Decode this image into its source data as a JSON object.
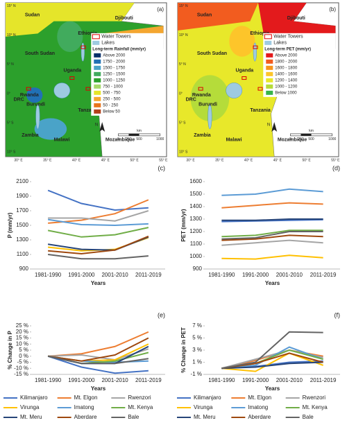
{
  "maps": [
    {
      "panel_label": "(a)",
      "water_towers": "Water Towers",
      "lakes": "Lakes",
      "legend_title": "Long-term Rainfall (mm/yr)",
      "classes": [
        {
          "label": "Above 2000",
          "color": "#08306b"
        },
        {
          "label": "1750 - 2000",
          "color": "#2171b5"
        },
        {
          "label": "1500 - 1750",
          "color": "#4aa3c8"
        },
        {
          "label": "1250 - 1500",
          "color": "#41ab5d"
        },
        {
          "label": "1000 - 1250",
          "color": "#2ca02c"
        },
        {
          "label": "750 - 1000",
          "color": "#a6d96a"
        },
        {
          "label": "500 - 750",
          "color": "#e5e52a"
        },
        {
          "label": "250 - 500",
          "color": "#f4a630"
        },
        {
          "label": "50 - 250",
          "color": "#e8741c"
        },
        {
          "label": "Below 50",
          "color": "#b2401a"
        }
      ],
      "places": [
        "Sudan",
        "Djibouti",
        "Ethiopia",
        "South Sudan",
        "Uganda",
        "Kenya",
        "Rwanda",
        "DRC",
        "Burundi",
        "Tanzania",
        "Zambia",
        "Malawi",
        "Mozambique"
      ],
      "lat_labels": [
        "15° N",
        "10° N",
        "5° N",
        "0°",
        "5° S",
        "10° S"
      ],
      "lon_labels": [
        "30° E",
        "35° E",
        "40° E",
        "45° E",
        "50° E",
        "55° E"
      ],
      "scale_labels": [
        "0",
        "250",
        "500",
        "1000"
      ],
      "scale_unit": "km",
      "north": "N"
    },
    {
      "panel_label": "(b)",
      "water_towers": "Water Towers",
      "lakes": "Lakes",
      "legend_title": "Long-term PET (mm/yr)",
      "classes": [
        {
          "label": "Above 2000",
          "color": "#e31a1c"
        },
        {
          "label": "1800 - 2000",
          "color": "#f25c1f"
        },
        {
          "label": "1600 - 1800",
          "color": "#f7941d"
        },
        {
          "label": "1400 - 1600",
          "color": "#fdc52a"
        },
        {
          "label": "1200 - 1400",
          "color": "#e8e82a"
        },
        {
          "label": "1000 - 1200",
          "color": "#b5dc3a"
        },
        {
          "label": "Below 1000",
          "color": "#38b449"
        }
      ],
      "places": [
        "Sudan",
        "Djibouti",
        "Ethiopia",
        "South Sudan",
        "Uganda",
        "Kenya",
        "Rwanda",
        "DRC",
        "Burundi",
        "Tanzania",
        "Zambia",
        "Malawi",
        "Mozambique"
      ],
      "lat_labels": [
        "15° N",
        "10° N",
        "5° N",
        "0°",
        "5° S",
        "10° S"
      ],
      "lon_labels": [
        "30° E",
        "35° E",
        "40° E",
        "45° E",
        "50° E",
        "55° E"
      ],
      "scale_labels": [
        "0",
        "250",
        "500",
        "1000"
      ],
      "scale_unit": "km",
      "north": "N"
    }
  ],
  "chart_data": [
    {
      "type": "line",
      "panel_label": "(c)",
      "y_label": "P (mm/yr)",
      "x_label": "Years",
      "categories": [
        "1981-1990",
        "1991-2000",
        "2001-2010",
        "2011-2019"
      ],
      "ylim": [
        900,
        2100
      ],
      "yticks": [
        900,
        1100,
        1300,
        1500,
        1700,
        1900,
        2100
      ],
      "legend": false,
      "series": [
        {
          "name": "Kilimanjaro",
          "color": "#4472c4",
          "values": [
            1980,
            1800,
            1710,
            1740
          ]
        },
        {
          "name": "Mt. Elgon",
          "color": "#ed7d31",
          "values": [
            1530,
            1570,
            1660,
            1850
          ]
        },
        {
          "name": "Rwenzori",
          "color": "#a5a5a5",
          "values": [
            1600,
            1600,
            1560,
            1700
          ]
        },
        {
          "name": "Virunga",
          "color": "#ffc000",
          "values": [
            1200,
            1150,
            1170,
            1330
          ]
        },
        {
          "name": "Imatong",
          "color": "#5b9bd5",
          "values": [
            1580,
            1510,
            1500,
            1520
          ]
        },
        {
          "name": "Mt. Kenya",
          "color": "#70ad47",
          "values": [
            1430,
            1340,
            1370,
            1470
          ]
        },
        {
          "name": "Mt. Meru",
          "color": "#264478",
          "values": [
            1240,
            1170,
            1160,
            1340
          ]
        },
        {
          "name": "Aberdare",
          "color": "#9e480e",
          "values": [
            1150,
            1110,
            1160,
            1350
          ]
        },
        {
          "name": "Bale",
          "color": "#636363",
          "values": [
            1100,
            1040,
            1040,
            1080
          ]
        }
      ]
    },
    {
      "type": "line",
      "panel_label": "(d)",
      "y_label": "PET (mm/yr)",
      "x_label": "Years",
      "categories": [
        "1981-1990",
        "1991-2000",
        "2001-2010",
        "2011-2019"
      ],
      "ylim": [
        900,
        1600
      ],
      "yticks": [
        900,
        1000,
        1100,
        1200,
        1300,
        1400,
        1500,
        1600
      ],
      "legend": false,
      "series": [
        {
          "name": "Kilimanjaro",
          "color": "#4472c4",
          "values": [
            1280,
            1285,
            1290,
            1295
          ]
        },
        {
          "name": "Mt. Elgon",
          "color": "#ed7d31",
          "values": [
            1390,
            1410,
            1430,
            1420
          ]
        },
        {
          "name": "Rwenzori",
          "color": "#a5a5a5",
          "values": [
            1090,
            1110,
            1130,
            1110
          ]
        },
        {
          "name": "Virunga",
          "color": "#ffc000",
          "values": [
            985,
            980,
            1010,
            990
          ]
        },
        {
          "name": "Imatong",
          "color": "#5b9bd5",
          "values": [
            1490,
            1500,
            1540,
            1520
          ]
        },
        {
          "name": "Mt. Kenya",
          "color": "#70ad47",
          "values": [
            1160,
            1170,
            1210,
            1210
          ]
        },
        {
          "name": "Mt. Meru",
          "color": "#264478",
          "values": [
            1290,
            1290,
            1300,
            1300
          ]
        },
        {
          "name": "Aberdare",
          "color": "#9e480e",
          "values": [
            1130,
            1140,
            1170,
            1160
          ]
        },
        {
          "name": "Bale",
          "color": "#636363",
          "values": [
            1140,
            1150,
            1200,
            1200
          ]
        }
      ]
    },
    {
      "type": "line",
      "panel_label": "(e)",
      "y_label": "% Change in P",
      "x_label": "Years",
      "categories": [
        "1981-1990",
        "1991-2000",
        "2001-2010",
        "2011-2019"
      ],
      "ylim": [
        -15,
        25
      ],
      "yticks": [
        {
          "value": -15,
          "label": "-15 %"
        },
        {
          "value": -10,
          "label": "-10 %"
        },
        {
          "value": -5,
          "label": "-5 %"
        },
        {
          "value": 0,
          "label": "0 %"
        },
        {
          "value": 5,
          "label": "5 %"
        },
        {
          "value": 10,
          "label": "10 %"
        },
        {
          "value": 15,
          "label": "15 %"
        },
        {
          "value": 20,
          "label": "20 %"
        },
        {
          "value": 25,
          "label": "25 %"
        }
      ],
      "legend": true,
      "series": [
        {
          "name": "Kilimanjaro",
          "color": "#4472c4",
          "values": [
            0,
            -9,
            -14,
            -12
          ]
        },
        {
          "name": "Mt. Elgon",
          "color": "#ed7d31",
          "values": [
            0,
            2,
            8,
            20
          ]
        },
        {
          "name": "Rwenzori",
          "color": "#a5a5a5",
          "values": [
            0,
            1,
            -3,
            6
          ]
        },
        {
          "name": "Virunga",
          "color": "#ffc000",
          "values": [
            0,
            -4,
            -3,
            10
          ]
        },
        {
          "name": "Imatong",
          "color": "#5b9bd5",
          "values": [
            0,
            -4,
            -5,
            -4
          ]
        },
        {
          "name": "Mt. Kenya",
          "color": "#70ad47",
          "values": [
            0,
            -6,
            -4,
            3
          ]
        },
        {
          "name": "Mt. Meru",
          "color": "#264478",
          "values": [
            0,
            -6,
            -6,
            8
          ]
        },
        {
          "name": "Aberdare",
          "color": "#9e480e",
          "values": [
            0,
            -4,
            1,
            15
          ]
        },
        {
          "name": "Bale",
          "color": "#636363",
          "values": [
            0,
            -6,
            -6,
            -2
          ]
        }
      ]
    },
    {
      "type": "line",
      "panel_label": "(f)",
      "y_label": "% Change in PET",
      "x_label": "Years",
      "categories": [
        "1981-1990",
        "1991-2000",
        "2001-2010",
        "2011-2019"
      ],
      "ylim": [
        -1,
        7
      ],
      "yticks": [
        {
          "value": -1,
          "label": "-1 %"
        },
        {
          "value": 1,
          "label": "1 %"
        },
        {
          "value": 3,
          "label": "3 %"
        },
        {
          "value": 5,
          "label": "5 %"
        },
        {
          "value": 7,
          "label": "7 %"
        }
      ],
      "legend": true,
      "series": [
        {
          "name": "Kilimanjaro",
          "color": "#4472c4",
          "values": [
            0,
            0.3,
            1,
            1.2
          ]
        },
        {
          "name": "Mt. Elgon",
          "color": "#ed7d31",
          "values": [
            0,
            1.3,
            3,
            2
          ]
        },
        {
          "name": "Rwenzori",
          "color": "#a5a5a5",
          "values": [
            0,
            1.5,
            3,
            1.8
          ]
        },
        {
          "name": "Virunga",
          "color": "#ffc000",
          "values": [
            0,
            -0.5,
            2.5,
            0.5
          ]
        },
        {
          "name": "Imatong",
          "color": "#5b9bd5",
          "values": [
            0,
            0.5,
            3.5,
            1.5
          ]
        },
        {
          "name": "Mt. Kenya",
          "color": "#70ad47",
          "values": [
            0,
            0.8,
            3,
            1.5
          ]
        },
        {
          "name": "Mt. Meru",
          "color": "#264478",
          "values": [
            0,
            0.2,
            0.8,
            1
          ]
        },
        {
          "name": "Aberdare",
          "color": "#9e480e",
          "values": [
            0,
            0.8,
            2.5,
            1
          ]
        },
        {
          "name": "Bale",
          "color": "#636363",
          "values": [
            0,
            1,
            6,
            5.9
          ]
        }
      ]
    }
  ]
}
